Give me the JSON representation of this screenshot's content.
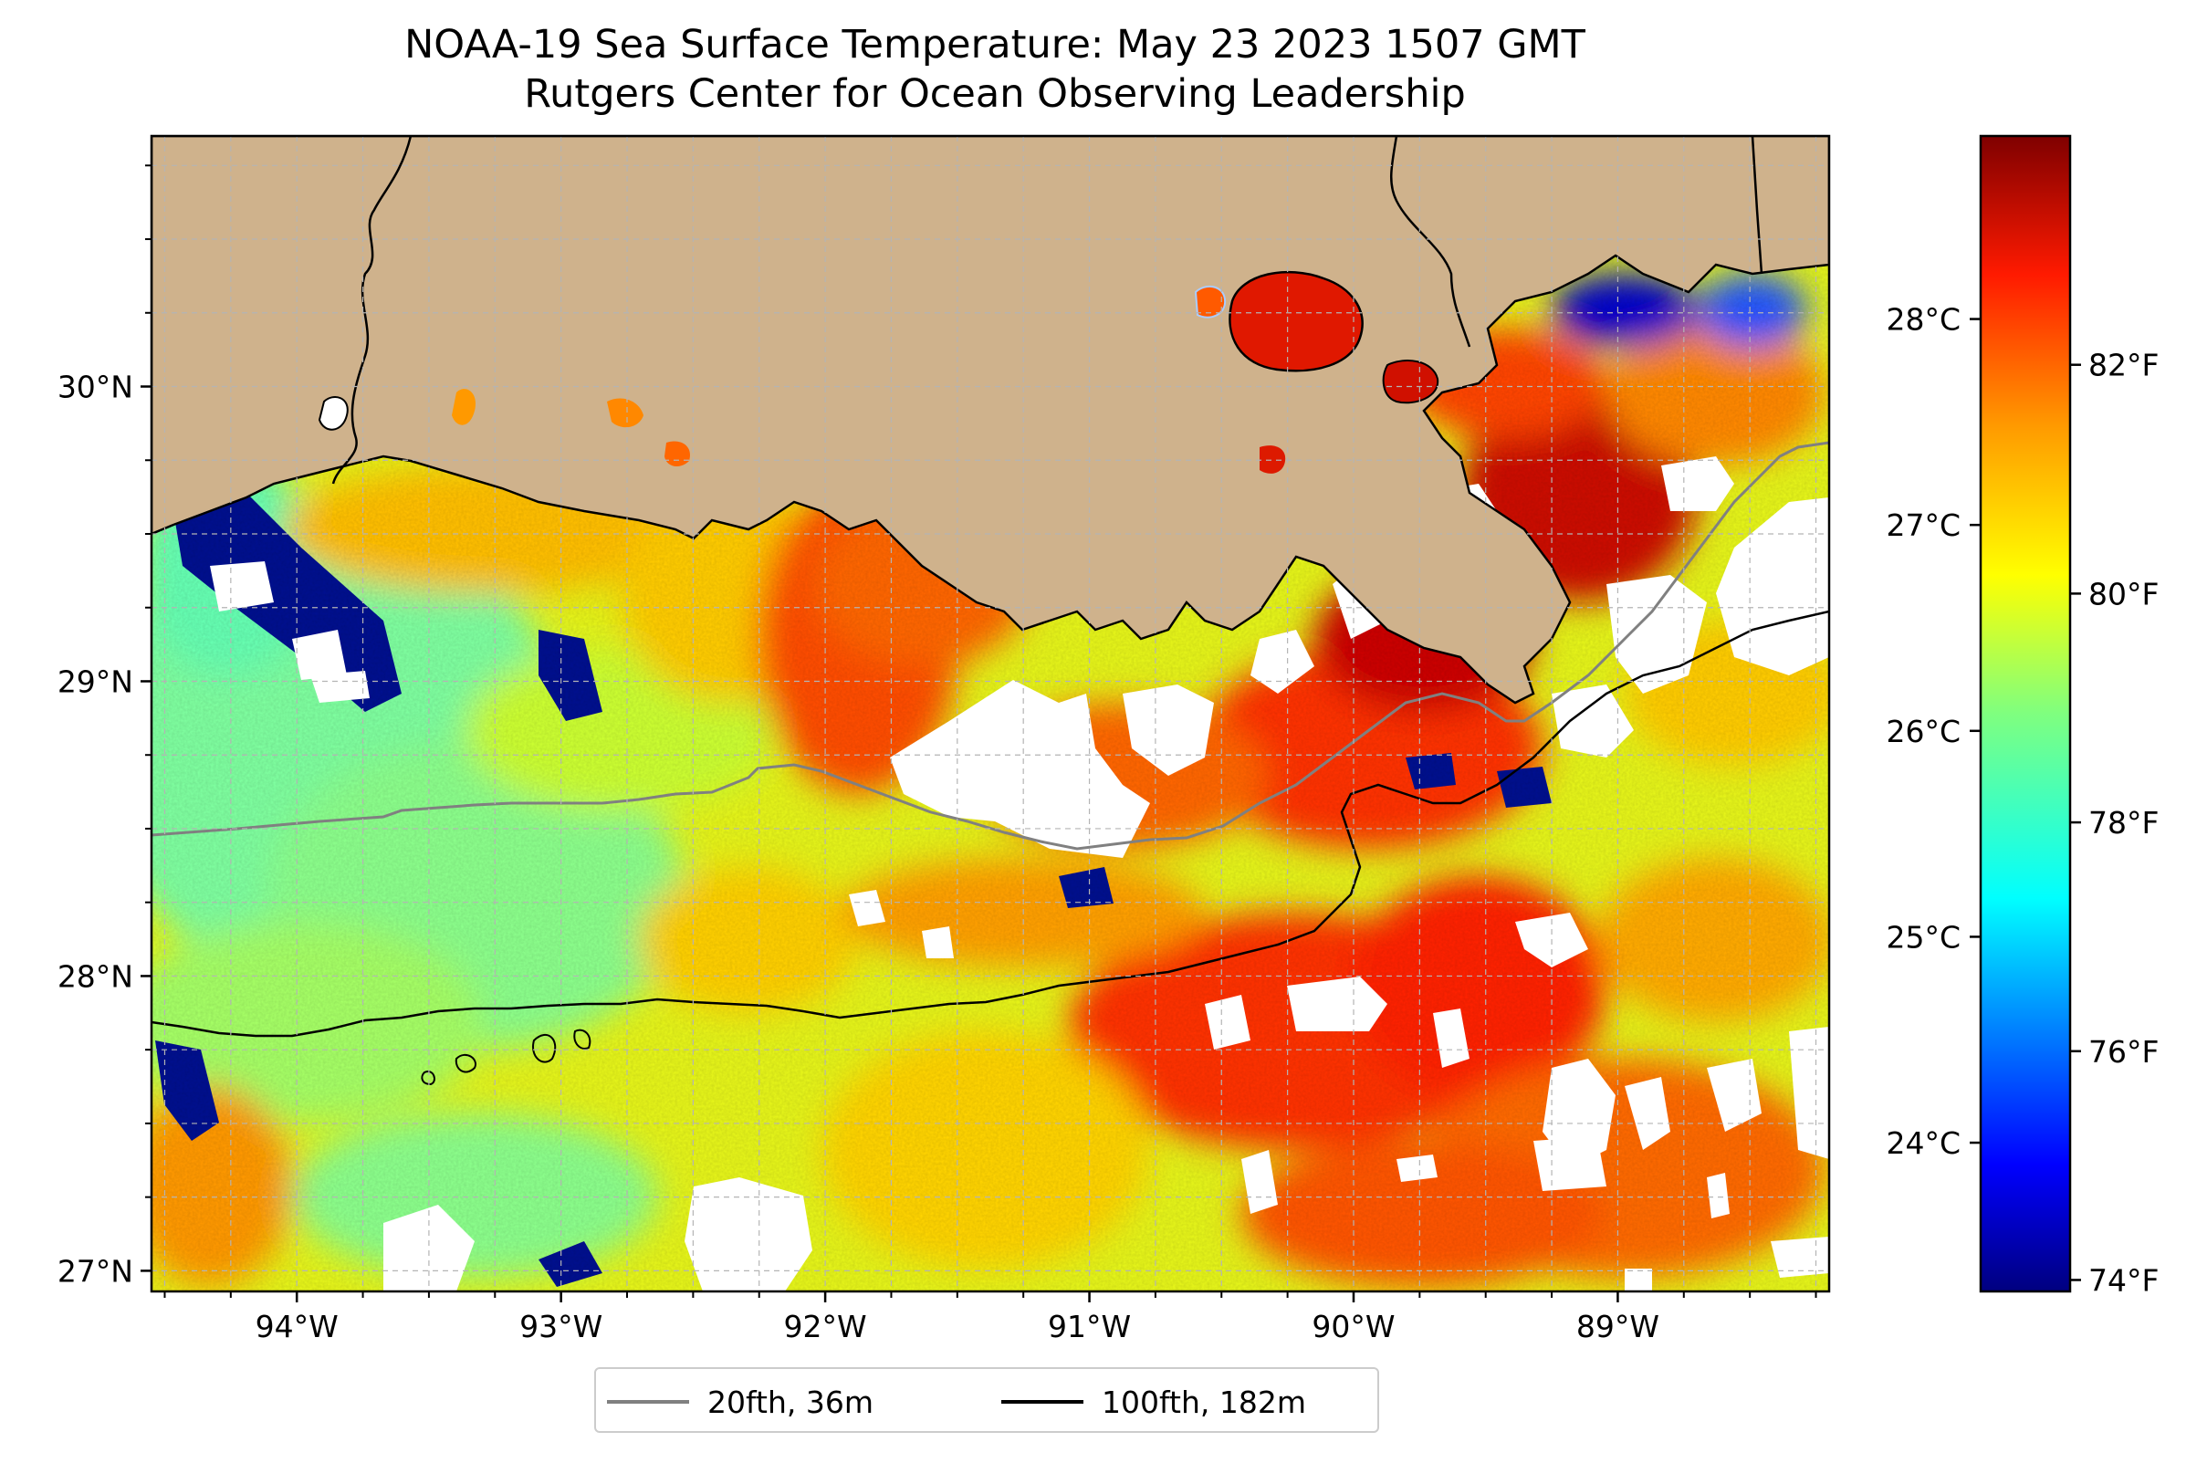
{
  "title": {
    "line1": "NOAA-19 Sea Surface Temperature: May 23 2023 1507 GMT",
    "line2": "Rutgers Center for Ocean Observing Leadership"
  },
  "map": {
    "lon_range": [
      -94.55,
      -88.2
    ],
    "lat_range": [
      26.93,
      30.85
    ],
    "x_ticks": [
      {
        "lon": -94,
        "label": "94°W"
      },
      {
        "lon": -93,
        "label": "93°W"
      },
      {
        "lon": -92,
        "label": "92°W"
      },
      {
        "lon": -91,
        "label": "91°W"
      },
      {
        "lon": -90,
        "label": "90°W"
      },
      {
        "lon": -89,
        "label": "89°W"
      }
    ],
    "y_ticks": [
      {
        "lat": 27,
        "label": "27°N"
      },
      {
        "lat": 28,
        "label": "28°N"
      },
      {
        "lat": 29,
        "label": "29°N"
      },
      {
        "lat": 30,
        "label": "30°N"
      }
    ],
    "grid": true,
    "land_color": "#cfb28c",
    "cloud_color": "#ffffff",
    "isobaths": [
      {
        "name": "20fth, 36m",
        "color": "#808080"
      },
      {
        "name": "100fth, 182m",
        "color": "#000000"
      }
    ]
  },
  "colorbar": {
    "colormap": "jet",
    "celsius_ticks": [
      {
        "value": 24,
        "label": "24°C"
      },
      {
        "value": 25,
        "label": "25°C"
      },
      {
        "value": 26,
        "label": "26°C"
      },
      {
        "value": 27,
        "label": "27°C"
      },
      {
        "value": 28,
        "label": "28°C"
      }
    ],
    "fahrenheit_ticks": [
      {
        "value": 74,
        "label": "74°F"
      },
      {
        "value": 76,
        "label": "76°F"
      },
      {
        "value": 78,
        "label": "78°F"
      },
      {
        "value": 80,
        "label": "80°F"
      },
      {
        "value": 82,
        "label": "82°F"
      }
    ],
    "range_f": [
      73.9,
      84.0
    ],
    "colors": [
      "#00007f",
      "#0000ff",
      "#007fff",
      "#00ffff",
      "#7fff7f",
      "#ffff00",
      "#ff7f00",
      "#ff0000",
      "#7f0000"
    ]
  },
  "legend": {
    "items": [
      {
        "label": "20fth, 36m",
        "color": "#808080"
      },
      {
        "label": "100fth, 182m",
        "color": "#000000"
      }
    ]
  }
}
